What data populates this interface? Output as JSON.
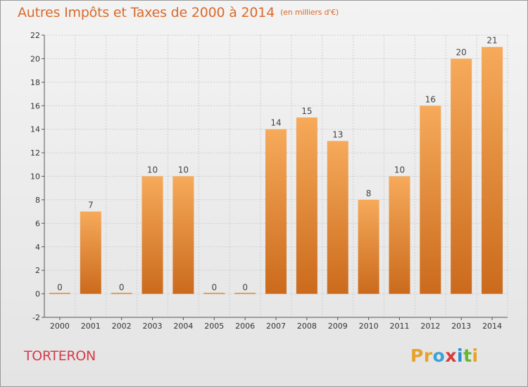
{
  "title": "Autres Impôts et Taxes de 2000 à 2014",
  "unit_label": "(en milliers d'€)",
  "commune": "TORTERON",
  "logo": {
    "letters": [
      "P",
      "r",
      "o",
      "x",
      "i",
      "t",
      "i"
    ],
    "colors": [
      "#e7a22b",
      "#e7a22b",
      "#3aa2d8",
      "#d93a3a",
      "#2a8fd0",
      "#66b832",
      "#e7a22b"
    ]
  },
  "colors": {
    "title": "#d96a2b",
    "commune": "#d63a4a",
    "bar_top": "#f6aa5a",
    "bar_bottom": "#cb6a1c"
  },
  "chart_data": {
    "type": "bar",
    "categories": [
      "2000",
      "2001",
      "2002",
      "2003",
      "2004",
      "2005",
      "2006",
      "2007",
      "2008",
      "2009",
      "2010",
      "2011",
      "2012",
      "2013",
      "2014"
    ],
    "values": [
      0,
      7,
      0,
      10,
      10,
      0,
      0,
      14,
      15,
      13,
      8,
      10,
      16,
      20,
      21
    ],
    "value_labels": [
      "0",
      "7",
      "0",
      "10",
      "10",
      "0",
      "0",
      "14",
      "15",
      "13",
      "8",
      "10",
      "16",
      "20",
      "21"
    ],
    "ylim": [
      -2,
      22
    ],
    "yticks": [
      "-2",
      "0",
      "2",
      "4",
      "6",
      "8",
      "10",
      "12",
      "14",
      "16",
      "18",
      "20",
      "22"
    ],
    "grid": true,
    "xlabel": "",
    "ylabel": ""
  }
}
